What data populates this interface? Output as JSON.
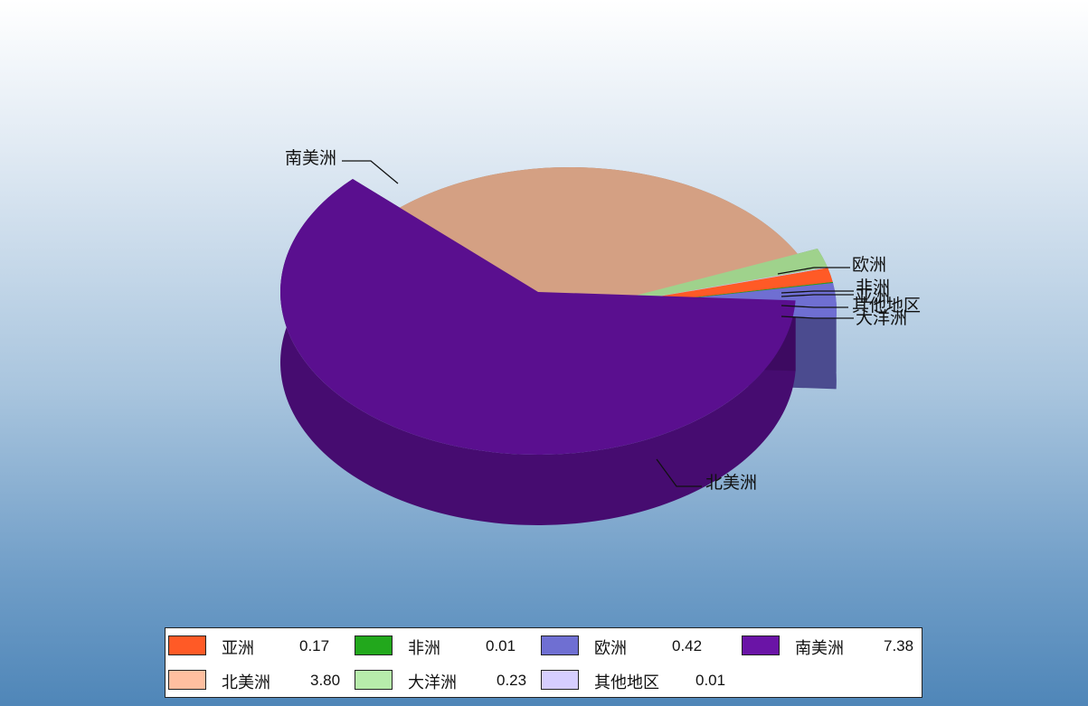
{
  "chart_data": {
    "type": "pie",
    "title": "",
    "style": "3d-exploded",
    "slices": [
      {
        "label": "亚洲",
        "value": 0.17,
        "color": "#ff5a26"
      },
      {
        "label": "非洲",
        "value": 0.01,
        "color": "#22a81c"
      },
      {
        "label": "欧洲",
        "value": 0.42,
        "color": "#6f6fd2"
      },
      {
        "label": "南美洲",
        "value": 7.38,
        "color": "#5a0f8f"
      },
      {
        "label": "北美洲",
        "value": 3.8,
        "color": "#d4a083"
      },
      {
        "label": "大洋洲",
        "value": 0.23,
        "color": "#9fd28c"
      },
      {
        "label": "其他地区",
        "value": 0.01,
        "color": "#c8c0f0"
      }
    ],
    "legend": {
      "position": "bottom",
      "items": [
        {
          "label": "亚洲",
          "value": "0.17",
          "color": "#ff5a26"
        },
        {
          "label": "非洲",
          "value": "0.01",
          "color": "#22a81c"
        },
        {
          "label": "欧洲",
          "value": "0.42",
          "color": "#6f6fd2"
        },
        {
          "label": "南美洲",
          "value": "7.38",
          "color": "#6a14a6"
        },
        {
          "label": "北美洲",
          "value": "3.80",
          "color": "#ffbfa0"
        },
        {
          "label": "大洋洲",
          "value": "0.23",
          "color": "#b7ecab"
        },
        {
          "label": "其他地区",
          "value": "0.01",
          "color": "#d6ceff"
        }
      ]
    }
  }
}
